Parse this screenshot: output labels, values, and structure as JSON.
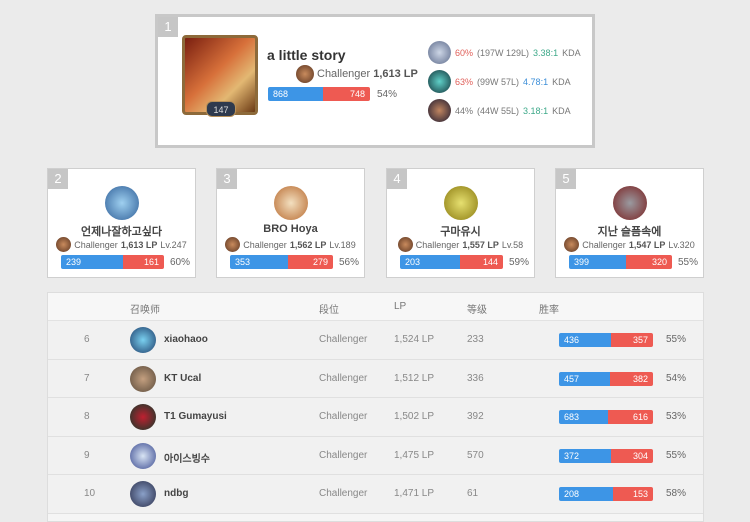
{
  "top": {
    "rank": "1",
    "name": "a little story",
    "level": "147",
    "tier": "Challenger",
    "lp": "1,613 LP",
    "wins": "868",
    "losses": "748",
    "winrate": "54%",
    "champions": [
      {
        "winrate": "60%",
        "record": "(197W 129L)",
        "kda": "3.38:1",
        "kda_label": "KDA",
        "wr_color": "red",
        "kda_color": "green"
      },
      {
        "winrate": "63%",
        "record": "(99W 57L)",
        "kda": "4.78:1",
        "kda_label": "KDA",
        "wr_color": "red",
        "kda_color": "blue"
      },
      {
        "winrate": "44%",
        "record": "(44W 55L)",
        "kda": "3.18:1",
        "kda_label": "KDA",
        "wr_color": "gray",
        "kda_color": "green"
      }
    ]
  },
  "cards": [
    {
      "rank": "2",
      "name": "언제나잘하고싶다",
      "tier": "Challenger",
      "lp": "1,613 LP",
      "level": "Lv.247",
      "wins": "239",
      "losses": "161",
      "winrate": "60%"
    },
    {
      "rank": "3",
      "name": "BRO Hoya",
      "tier": "Challenger",
      "lp": "1,562 LP",
      "level": "Lv.189",
      "wins": "353",
      "losses": "279",
      "winrate": "56%"
    },
    {
      "rank": "4",
      "name": "구마유시",
      "tier": "Challenger",
      "lp": "1,557 LP",
      "level": "Lv.58",
      "wins": "203",
      "losses": "144",
      "winrate": "59%"
    },
    {
      "rank": "5",
      "name": "지난 슬픔속에",
      "tier": "Challenger",
      "lp": "1,547 LP",
      "level": "Lv.320",
      "wins": "399",
      "losses": "320",
      "winrate": "55%"
    }
  ],
  "table": {
    "headers": {
      "summoner": "召唤师",
      "tier": "段位",
      "lp": "LP",
      "level": "等级",
      "winrate": "胜率"
    },
    "rows": [
      {
        "rank": "6",
        "name": "xiaohaoo",
        "tier": "Challenger",
        "lp": "1,524 LP",
        "level": "233",
        "wins": "436",
        "losses": "357",
        "winrate": "55%"
      },
      {
        "rank": "7",
        "name": "KT Ucal",
        "tier": "Challenger",
        "lp": "1,512 LP",
        "level": "336",
        "wins": "457",
        "losses": "382",
        "winrate": "54%"
      },
      {
        "rank": "8",
        "name": "T1 Gumayusi",
        "tier": "Challenger",
        "lp": "1,502 LP",
        "level": "392",
        "wins": "683",
        "losses": "616",
        "winrate": "53%"
      },
      {
        "rank": "9",
        "name": "아이스빙수",
        "tier": "Challenger",
        "lp": "1,475 LP",
        "level": "570",
        "wins": "372",
        "losses": "304",
        "winrate": "55%"
      },
      {
        "rank": "10",
        "name": "ndbg",
        "tier": "Challenger",
        "lp": "1,471 LP",
        "level": "61",
        "wins": "208",
        "losses": "153",
        "winrate": "58%"
      }
    ]
  },
  "colors": {
    "win": "#3d95e6",
    "loss": "#ee5a52"
  }
}
